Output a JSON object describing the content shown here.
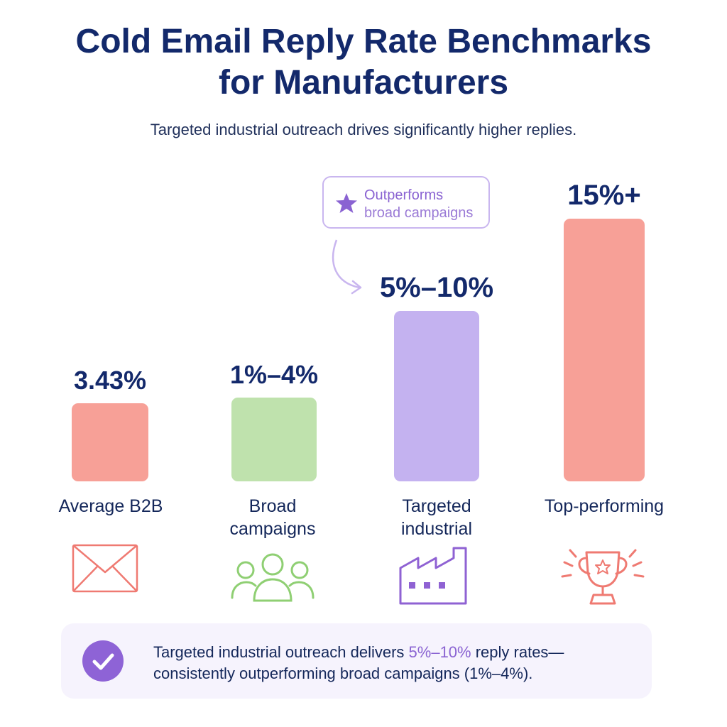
{
  "chart_data": {
    "type": "bar",
    "title": "Cold Email Reply Rate Benchmarks for Manufacturers",
    "subtitle": "Targeted industrial outreach drives significantly higher replies.",
    "categories": [
      "Average B2B",
      "Broad campaigns",
      "Targeted industrial",
      "Top-performing"
    ],
    "values": [
      3.43,
      4,
      10,
      15
    ],
    "data_labels": [
      "3.43%",
      "1%–4%",
      "5%–10%",
      "15%+"
    ],
    "colors": [
      "#f7a097",
      "#bfe2ad",
      "#c4b2f0",
      "#f7a097"
    ],
    "icons": [
      "envelope-icon",
      "people-icon",
      "factory-icon",
      "trophy-icon"
    ],
    "icon_colors": [
      "#ef7a72",
      "#8fcf73",
      "#8f62d3",
      "#ef7a72"
    ],
    "grid": false,
    "legend": "none"
  },
  "callout": {
    "line1": "Outperforms",
    "line2": "broad campaigns",
    "icon": "star-icon",
    "color": "#8a63d2"
  },
  "footer": {
    "text_before": "Targeted industrial outreach delivers ",
    "highlight": "5%–10%",
    "text_after": " reply rates—",
    "line2": "consistently outperforming broad campaigns (1%–4%).",
    "icon": "checkmark-icon",
    "highlight_color": "#8a63d2"
  }
}
